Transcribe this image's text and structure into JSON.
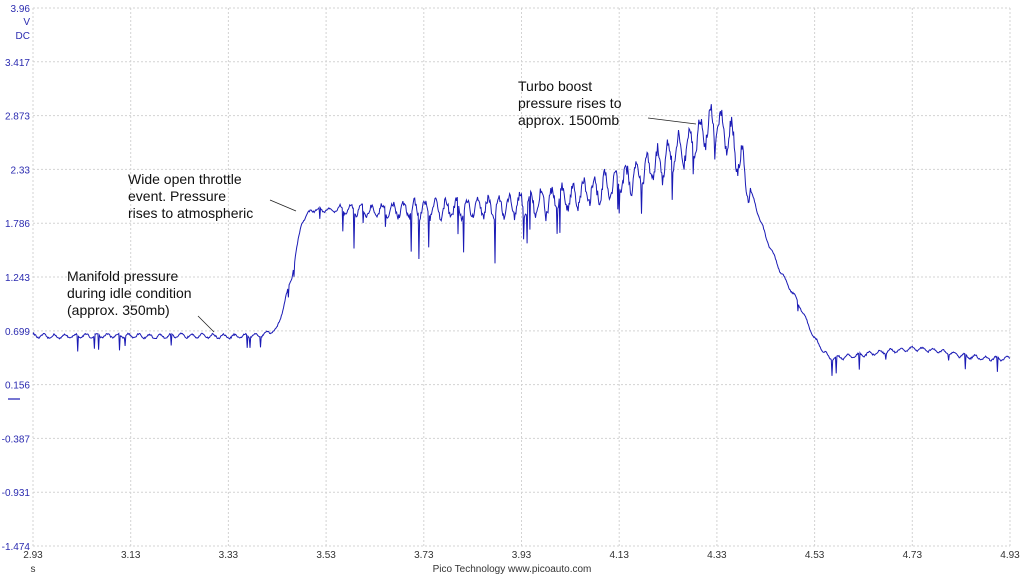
{
  "chart_data": {
    "type": "line",
    "title": "",
    "xlabel": "s",
    "ylabel": "V",
    "y_unit": "V",
    "y_coupling": "DC",
    "xlim": [
      2.93,
      4.93
    ],
    "ylim": [
      -1.474,
      3.96
    ],
    "x_ticks": [
      "2.93",
      "3.13",
      "3.33",
      "3.53",
      "3.73",
      "3.93",
      "4.13",
      "4.33",
      "4.53",
      "4.73",
      "4.93"
    ],
    "y_ticks": [
      "3.96",
      "3.417",
      "2.873",
      "2.33",
      "1.786",
      "1.243",
      "0.699",
      "0.156",
      "-0.387",
      "-0.931",
      "-1.474"
    ],
    "grid": true,
    "line_color": "#1a1ab5",
    "series": [
      {
        "name": "",
        "x": [
          2.93,
          2.98,
          3.03,
          3.08,
          3.13,
          3.18,
          3.23,
          3.28,
          3.33,
          3.38,
          3.4,
          3.43,
          3.46,
          3.48,
          3.5,
          3.53,
          3.58,
          3.63,
          3.68,
          3.73,
          3.78,
          3.83,
          3.88,
          3.93,
          3.98,
          4.03,
          4.08,
          4.13,
          4.18,
          4.23,
          4.28,
          4.31,
          4.33,
          4.36,
          4.4,
          4.43,
          4.46,
          4.5,
          4.53,
          4.56,
          4.6,
          4.63,
          4.68,
          4.73,
          4.78,
          4.83,
          4.88,
          4.93
        ],
        "values": [
          0.65,
          0.64,
          0.65,
          0.65,
          0.65,
          0.64,
          0.65,
          0.65,
          0.64,
          0.65,
          0.66,
          0.72,
          1.25,
          1.8,
          1.92,
          1.92,
          1.92,
          1.91,
          1.92,
          1.92,
          1.93,
          1.94,
          1.95,
          1.97,
          2.0,
          2.05,
          2.12,
          2.2,
          2.3,
          2.45,
          2.6,
          2.75,
          2.8,
          2.65,
          2.1,
          1.65,
          1.3,
          0.95,
          0.62,
          0.42,
          0.44,
          0.46,
          0.49,
          0.52,
          0.5,
          0.45,
          0.42,
          0.42
        ]
      }
    ],
    "annotations": [
      {
        "lines": [
          "Turbo boost",
          "pressure rises to",
          "approx. 1500mb"
        ],
        "x": 4.33,
        "y": 2.82
      },
      {
        "lines": [
          "Wide open throttle",
          "event. Pressure",
          "rises to atmospheric"
        ],
        "x": 3.5,
        "y": 1.91
      },
      {
        "lines": [
          "Manifold pressure",
          "during idle condition",
          "(approx. 350mb)"
        ],
        "x": 3.28,
        "y": 0.66
      }
    ]
  },
  "footer": "Pico Technology  www.picoauto.com"
}
